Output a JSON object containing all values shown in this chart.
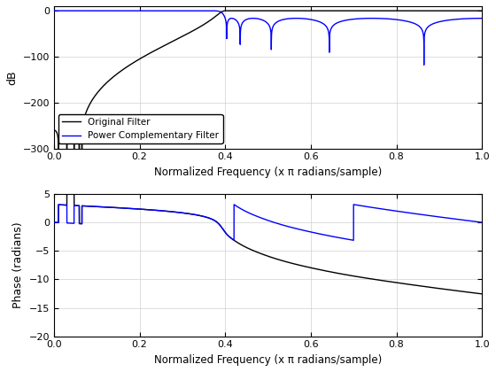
{
  "xlabel": "Normalized Frequency (x π radians/sample)",
  "ylabel1": "dB",
  "ylabel2": "Phase (radians)",
  "ylim1": [
    -300,
    10
  ],
  "ylim2": [
    -20,
    5
  ],
  "xlim": [
    0,
    1
  ],
  "color_orig": "#000000",
  "color_comp": "#0000FF",
  "legend_labels": [
    "Original Filter",
    "Power Complementary Filter"
  ],
  "grid_color": "#d0d0d0",
  "bg_color": "#ffffff",
  "line_width": 1.0,
  "yticks1": [
    0,
    -100,
    -200,
    -300
  ],
  "yticks2": [
    5,
    0,
    -5,
    -10,
    -15,
    -20
  ],
  "xticks": [
    0,
    0.2,
    0.4,
    0.6,
    0.8,
    1.0
  ]
}
